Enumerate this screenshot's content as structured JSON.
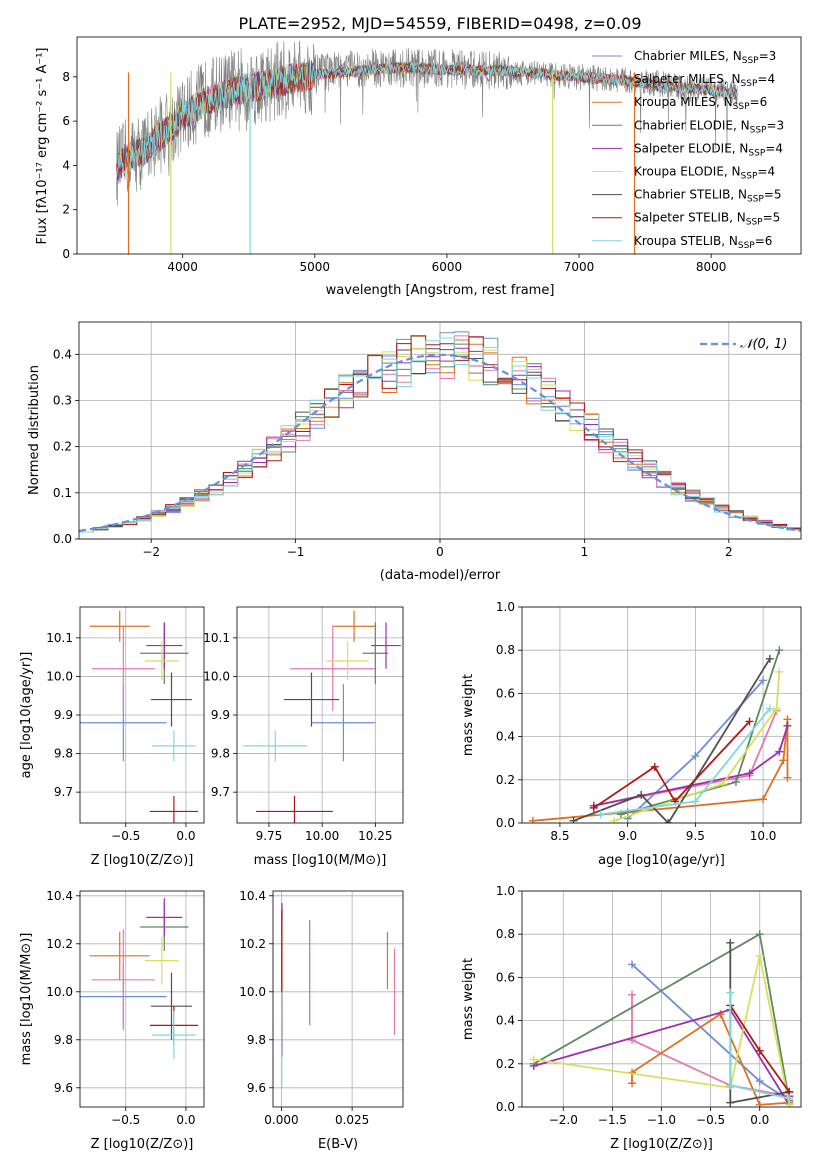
{
  "figure": {
    "title": "PLATE=2952, MJD=54559, FIBERID=0498, z=0.09"
  },
  "chart_data": [
    {
      "id": "spectrum",
      "type": "line",
      "title": "PLATE=2952, MJD=54559, FIBERID=0498, z=0.09",
      "xlabel": "wavelength [Angstrom, rest frame]",
      "ylabel": "Flux [fλ10⁻¹⁷ erg cm⁻² s⁻¹ A⁻¹]",
      "xlim": [
        3200,
        8680
      ],
      "ylim": [
        0,
        9.8
      ],
      "xticks": [
        4000,
        5000,
        6000,
        7000,
        8000
      ],
      "yticks": [
        0,
        2,
        4,
        6,
        8
      ],
      "grid": false,
      "legend_position": "right",
      "data_series": {
        "name": "data",
        "color": "#808080",
        "x": [
          3500,
          3600,
          3700,
          3800,
          3900,
          4000,
          4100,
          4200,
          4300,
          4400,
          4500,
          4600,
          4700,
          4800,
          4900,
          5000,
          5200,
          5400,
          5600,
          5800,
          6000,
          6200,
          6400,
          6600,
          6800,
          7000,
          7200,
          7400,
          7600,
          7800,
          8000,
          8200
        ],
        "y": [
          3.9,
          4.5,
          4.6,
          5.3,
          5.7,
          6.2,
          6.7,
          7.1,
          7.3,
          7.5,
          7.6,
          7.6,
          7.8,
          7.9,
          8.0,
          8.1,
          8.3,
          8.4,
          8.4,
          8.4,
          8.4,
          8.3,
          8.3,
          8.2,
          8.1,
          8.0,
          7.9,
          7.8,
          7.7,
          7.5,
          7.4,
          7.2
        ]
      },
      "model_x": [
        3500,
        3600,
        3700,
        3800,
        3900,
        4000,
        4100,
        4200,
        4300,
        4400,
        4500,
        4600,
        4700,
        4800,
        4900,
        5000,
        5200,
        5400,
        5600,
        5800,
        6000,
        6200,
        6400,
        6600,
        6800,
        7000,
        7200,
        7400,
        7600,
        7800,
        8000,
        8200
      ],
      "model_y": [
        3.9,
        4.4,
        4.6,
        5.2,
        5.6,
        6.2,
        6.6,
        7.0,
        7.2,
        7.4,
        7.5,
        7.6,
        7.7,
        7.9,
        8.0,
        8.1,
        8.2,
        8.3,
        8.4,
        8.4,
        8.3,
        8.3,
        8.3,
        8.2,
        8.1,
        8.0,
        7.9,
        7.8,
        7.6,
        7.5,
        7.4,
        7.2
      ],
      "dips": [
        {
          "x": 3590,
          "color": "#e07020"
        },
        {
          "x": 3910,
          "color": "#d4e060"
        },
        {
          "x": 4510,
          "color": "#7fd8e0"
        },
        {
          "x": 6800,
          "color": "#d4e060"
        },
        {
          "x": 7420,
          "color": "#e07020"
        }
      ],
      "series": [
        {
          "name": "Chabrier MILES, N_SSP=3",
          "label_main": "Chabrier MILES, N",
          "label_sub": "SSP",
          "label_tail": "=3",
          "color": "#6b8fd8"
        },
        {
          "name": "Salpeter MILES, N_SSP=4",
          "label_main": "Salpeter MILES, N",
          "label_sub": "SSP",
          "label_tail": "=4",
          "color": "#e879a8"
        },
        {
          "name": "Kroupa MILES, N_SSP=6",
          "label_main": "Kroupa MILES, N",
          "label_sub": "SSP",
          "label_tail": "=6",
          "color": "#e07020"
        },
        {
          "name": "Chabrier ELODIE, N_SSP=3",
          "label_main": "Chabrier ELODIE, N",
          "label_sub": "SSP",
          "label_tail": "=3",
          "color": "#5e8a5e"
        },
        {
          "name": "Salpeter ELODIE, N_SSP=4",
          "label_main": "Salpeter ELODIE, N",
          "label_sub": "SSP",
          "label_tail": "=4",
          "color": "#9b30b0"
        },
        {
          "name": "Kroupa ELODIE, N_SSP=4",
          "label_main": "Kroupa ELODIE, N",
          "label_sub": "SSP",
          "label_tail": "=4",
          "color": "#d4e060"
        },
        {
          "name": "Chabrier STELIB, N_SSP=5",
          "label_main": "Chabrier STELIB, N",
          "label_sub": "SSP",
          "label_tail": "=5",
          "color": "#505050"
        },
        {
          "name": "Salpeter STELIB, N_SSP=5",
          "label_main": "Salpeter STELIB, N",
          "label_sub": "SSP",
          "label_tail": "=5",
          "color": "#b01818"
        },
        {
          "name": "Kroupa STELIB, N_SSP=6",
          "label_main": "Kroupa STELIB, N",
          "label_sub": "SSP",
          "label_tail": "=6",
          "color": "#7fd8e0"
        }
      ]
    },
    {
      "id": "residuals",
      "type": "histogram",
      "xlabel": "(data-model)/error",
      "ylabel": "Normed distribution",
      "xlim": [
        -2.5,
        2.5
      ],
      "ylim": [
        0,
        0.47
      ],
      "xticks": [
        -2,
        -1,
        0,
        1,
        2
      ],
      "yticks": [
        0.0,
        0.1,
        0.2,
        0.3,
        0.4
      ],
      "grid": true,
      "legend_position": "top-right",
      "bin_width": 0.1,
      "normal_curve": {
        "name": "N(0,1)",
        "mean": 0,
        "sigma": 1,
        "color": "#6b8fd8"
      },
      "series_colors": [
        "#6b8fd8",
        "#e879a8",
        "#e07020",
        "#5e8a5e",
        "#9b30b0",
        "#d4e060",
        "#505050",
        "#b01818",
        "#7fd8e0"
      ]
    },
    {
      "id": "age-vs-Z",
      "type": "errorbar",
      "xlabel": "Z [log10(Z/Z⊙)]",
      "ylabel": "age [log10(age/yr)]",
      "xlim": [
        -0.88,
        0.15
      ],
      "ylim": [
        9.62,
        10.18
      ],
      "xticks": [
        -0.5,
        0.0
      ],
      "yticks": [
        9.7,
        9.8,
        9.9,
        10.0,
        10.1
      ],
      "grid": true,
      "points": [
        {
          "x": -0.52,
          "y": 9.88,
          "xerr": 0.36,
          "yerr": 0.1,
          "color": "#6b8fd8"
        },
        {
          "x": -0.52,
          "y": 10.02,
          "xerr": 0.26,
          "yerr": 0.11,
          "color": "#e879a8"
        },
        {
          "x": -0.55,
          "y": 10.13,
          "xerr": 0.25,
          "yerr": 0.04,
          "color": "#e07020"
        },
        {
          "x": -0.18,
          "y": 10.06,
          "xerr": 0.2,
          "yerr": 0.08,
          "color": "#5e8a5e"
        },
        {
          "x": -0.18,
          "y": 10.08,
          "xerr": 0.15,
          "yerr": 0.06,
          "color": "#9b30b0"
        },
        {
          "x": -0.2,
          "y": 10.04,
          "xerr": 0.14,
          "yerr": 0.05,
          "color": "#d4e060"
        },
        {
          "x": -0.12,
          "y": 9.94,
          "xerr": 0.17,
          "yerr": 0.07,
          "color": "#505050"
        },
        {
          "x": -0.1,
          "y": 9.65,
          "xerr": 0.2,
          "yerr": 0.04,
          "color": "#b01818"
        },
        {
          "x": -0.1,
          "y": 9.82,
          "xerr": 0.18,
          "yerr": 0.04,
          "color": "#7fd8e0"
        }
      ]
    },
    {
      "id": "age-vs-mass",
      "type": "errorbar",
      "xlabel": "mass [log10(M/M⊙)]",
      "ylabel": "",
      "xlim": [
        9.6,
        10.38
      ],
      "ylim": [
        9.62,
        10.18
      ],
      "xticks": [
        9.75,
        10.0,
        10.25
      ],
      "xticklabels": [
        "9.75",
        "10.00",
        "10.25"
      ],
      "yticks": [
        9.7,
        9.8,
        9.9,
        10.0,
        10.1
      ],
      "grid": true,
      "points": [
        {
          "x": 10.1,
          "y": 9.88,
          "xerr": 0.15,
          "yerr": 0.1,
          "color": "#6b8fd8"
        },
        {
          "x": 10.05,
          "y": 10.02,
          "xerr": 0.2,
          "yerr": 0.11,
          "color": "#e879a8"
        },
        {
          "x": 10.15,
          "y": 10.13,
          "xerr": 0.1,
          "yerr": 0.04,
          "color": "#e07020"
        },
        {
          "x": 10.25,
          "y": 10.06,
          "xerr": 0.06,
          "yerr": 0.08,
          "color": "#5e8a5e"
        },
        {
          "x": 10.3,
          "y": 10.08,
          "xerr": 0.07,
          "yerr": 0.06,
          "color": "#9b30b0"
        },
        {
          "x": 10.12,
          "y": 10.04,
          "xerr": 0.1,
          "yerr": 0.05,
          "color": "#d4e060"
        },
        {
          "x": 9.95,
          "y": 9.94,
          "xerr": 0.13,
          "yerr": 0.07,
          "color": "#505050"
        },
        {
          "x": 9.87,
          "y": 9.65,
          "xerr": 0.18,
          "yerr": 0.04,
          "color": "#b01818"
        },
        {
          "x": 9.78,
          "y": 9.82,
          "xerr": 0.15,
          "yerr": 0.04,
          "color": "#7fd8e0"
        }
      ]
    },
    {
      "id": "massweight-vs-age",
      "type": "line",
      "xlabel": "age [log10(age/yr)]",
      "ylabel": "mass weight",
      "xlim": [
        8.22,
        10.28
      ],
      "ylim": [
        0,
        1.0
      ],
      "xticks": [
        8.5,
        9.0,
        9.5,
        10.0
      ],
      "yticks": [
        0.0,
        0.2,
        0.4,
        0.6,
        0.8,
        1.0
      ],
      "grid": true,
      "series": [
        {
          "color": "#6b8fd8",
          "x": [
            9.0,
            9.5,
            10.0
          ],
          "y": [
            0.02,
            0.31,
            0.66
          ]
        },
        {
          "color": "#e879a8",
          "x": [
            8.75,
            9.9,
            10.1
          ],
          "y": [
            0.08,
            0.22,
            0.52
          ]
        },
        {
          "color": "#e07020",
          "x": [
            8.3,
            9.0,
            10.0,
            10.15,
            10.18,
            10.18
          ],
          "y": [
            0.01,
            0.05,
            0.11,
            0.29,
            0.48,
            0.21
          ]
        },
        {
          "color": "#5e8a5e",
          "x": [
            8.95,
            9.8,
            10.12
          ],
          "y": [
            0.04,
            0.19,
            0.8
          ]
        },
        {
          "color": "#9b30b0",
          "x": [
            8.75,
            9.9,
            10.12,
            10.18
          ],
          "y": [
            0.08,
            0.23,
            0.33,
            0.45
          ]
        },
        {
          "color": "#d4e060",
          "x": [
            8.9,
            9.7,
            10.1,
            10.12
          ],
          "y": [
            0.01,
            0.18,
            0.53,
            0.7
          ]
        },
        {
          "color": "#505050",
          "x": [
            8.6,
            9.1,
            9.3,
            10.05
          ],
          "y": [
            0.01,
            0.13,
            0.0,
            0.76
          ]
        },
        {
          "color": "#b01818",
          "x": [
            8.75,
            9.2,
            9.35,
            9.9
          ],
          "y": [
            0.07,
            0.26,
            0.1,
            0.47
          ]
        },
        {
          "color": "#7fd8e0",
          "x": [
            8.8,
            9.5,
            10.05
          ],
          "y": [
            0.04,
            0.1,
            0.53
          ]
        }
      ]
    },
    {
      "id": "mass-vs-Z",
      "type": "errorbar",
      "xlabel": "Z [log10(Z/Z⊙)]",
      "ylabel": "mass [log10(M/M⊙)]",
      "xlim": [
        -0.88,
        0.15
      ],
      "ylim": [
        9.52,
        10.42
      ],
      "xticks": [
        -0.5,
        0.0
      ],
      "yticks": [
        9.6,
        9.8,
        10.0,
        10.2,
        10.4
      ],
      "grid": true,
      "points": [
        {
          "x": -0.52,
          "y": 9.98,
          "xerr": 0.36,
          "yerr": 0.13,
          "color": "#6b8fd8"
        },
        {
          "x": -0.52,
          "y": 10.05,
          "xerr": 0.26,
          "yerr": 0.21,
          "color": "#e879a8"
        },
        {
          "x": -0.55,
          "y": 10.15,
          "xerr": 0.25,
          "yerr": 0.1,
          "color": "#e07020"
        },
        {
          "x": -0.18,
          "y": 10.27,
          "xerr": 0.2,
          "yerr": 0.1,
          "color": "#5e8a5e"
        },
        {
          "x": -0.18,
          "y": 10.31,
          "xerr": 0.15,
          "yerr": 0.08,
          "color": "#9b30b0"
        },
        {
          "x": -0.2,
          "y": 10.13,
          "xerr": 0.14,
          "yerr": 0.1,
          "color": "#d4e060"
        },
        {
          "x": -0.12,
          "y": 9.94,
          "xerr": 0.17,
          "yerr": 0.14,
          "color": "#505050"
        },
        {
          "x": -0.1,
          "y": 9.86,
          "xerr": 0.2,
          "yerr": 0.08,
          "color": "#b01818"
        },
        {
          "x": -0.1,
          "y": 9.82,
          "xerr": 0.18,
          "yerr": 0.1,
          "color": "#7fd8e0"
        }
      ]
    },
    {
      "id": "mass-vs-ebv",
      "type": "errorbar",
      "xlabel": "E(B-V)",
      "ylabel": "",
      "xlim": [
        -0.003,
        0.043
      ],
      "ylim": [
        9.52,
        10.42
      ],
      "xticks": [
        0.0,
        0.025
      ],
      "xticklabels": [
        "0.000",
        "0.025"
      ],
      "yticks": [
        9.6,
        9.8,
        10.0,
        10.2,
        10.4
      ],
      "grid": true,
      "points": [
        {
          "x": 0.01,
          "y": 10.08,
          "yerr": 0.22,
          "color": "#6b8fd8"
        },
        {
          "x": 0.04,
          "y": 10.0,
          "yerr": 0.18,
          "color": "#e879a8"
        },
        {
          "x": 0.0375,
          "y": 10.13,
          "yerr": 0.12,
          "color": "#e07020"
        },
        {
          "x": 0.0002,
          "y": 10.05,
          "yerr": 0.32,
          "color": "#9b30b0"
        },
        {
          "x": 0.0002,
          "y": 10.1,
          "yerr": 0.2,
          "color": "#d4e060"
        },
        {
          "x": 0.0001,
          "y": 10.04,
          "yerr": 0.3,
          "color": "#b01818"
        },
        {
          "x": 0.0001,
          "y": 9.8,
          "yerr": 0.2,
          "color": "#7fd8e0"
        }
      ]
    },
    {
      "id": "massweight-vs-Z",
      "type": "line",
      "xlabel": "Z [log10(Z/Z⊙)]",
      "ylabel": "mass weight",
      "xlim": [
        -2.42,
        0.42
      ],
      "ylim": [
        0,
        1.0
      ],
      "xticks": [
        -2.0,
        -1.5,
        -1.0,
        -0.5,
        0.0
      ],
      "yticks": [
        0.0,
        0.2,
        0.4,
        0.6,
        0.8,
        1.0
      ],
      "grid": true,
      "series": [
        {
          "color": "#6b8fd8",
          "x": [
            -1.3,
            0.0,
            0.3
          ],
          "y": [
            0.66,
            0.12,
            0.03
          ]
        },
        {
          "color": "#e879a8",
          "x": [
            -1.3,
            -1.3,
            -0.3,
            0.3
          ],
          "y": [
            0.52,
            0.31,
            0.1,
            0.05
          ]
        },
        {
          "color": "#e07020",
          "x": [
            -1.3,
            -1.3,
            -0.4,
            0.0,
            0.3
          ],
          "y": [
            0.11,
            0.16,
            0.43,
            0.01,
            0.02
          ]
        },
        {
          "color": "#5e8a5e",
          "x": [
            -2.3,
            0.0,
            0.3
          ],
          "y": [
            0.2,
            0.8,
            0.03
          ]
        },
        {
          "color": "#9b30b0",
          "x": [
            -2.3,
            -0.3,
            0.3,
            0.3
          ],
          "y": [
            0.19,
            0.45,
            0.01,
            0.05
          ]
        },
        {
          "color": "#d4e060",
          "x": [
            -2.3,
            -0.3,
            0.0,
            0.3
          ],
          "y": [
            0.22,
            0.09,
            0.7,
            0.01
          ]
        },
        {
          "color": "#505050",
          "x": [
            -0.3,
            -0.3,
            0.3
          ],
          "y": [
            0.76,
            0.02,
            0.07
          ]
        },
        {
          "color": "#b01818",
          "x": [
            -0.3,
            0.0,
            0.3
          ],
          "y": [
            0.47,
            0.26,
            0.07
          ]
        },
        {
          "color": "#7fd8e0",
          "x": [
            -0.3,
            -0.3,
            0.3
          ],
          "y": [
            0.53,
            0.1,
            0.04
          ]
        }
      ]
    }
  ]
}
